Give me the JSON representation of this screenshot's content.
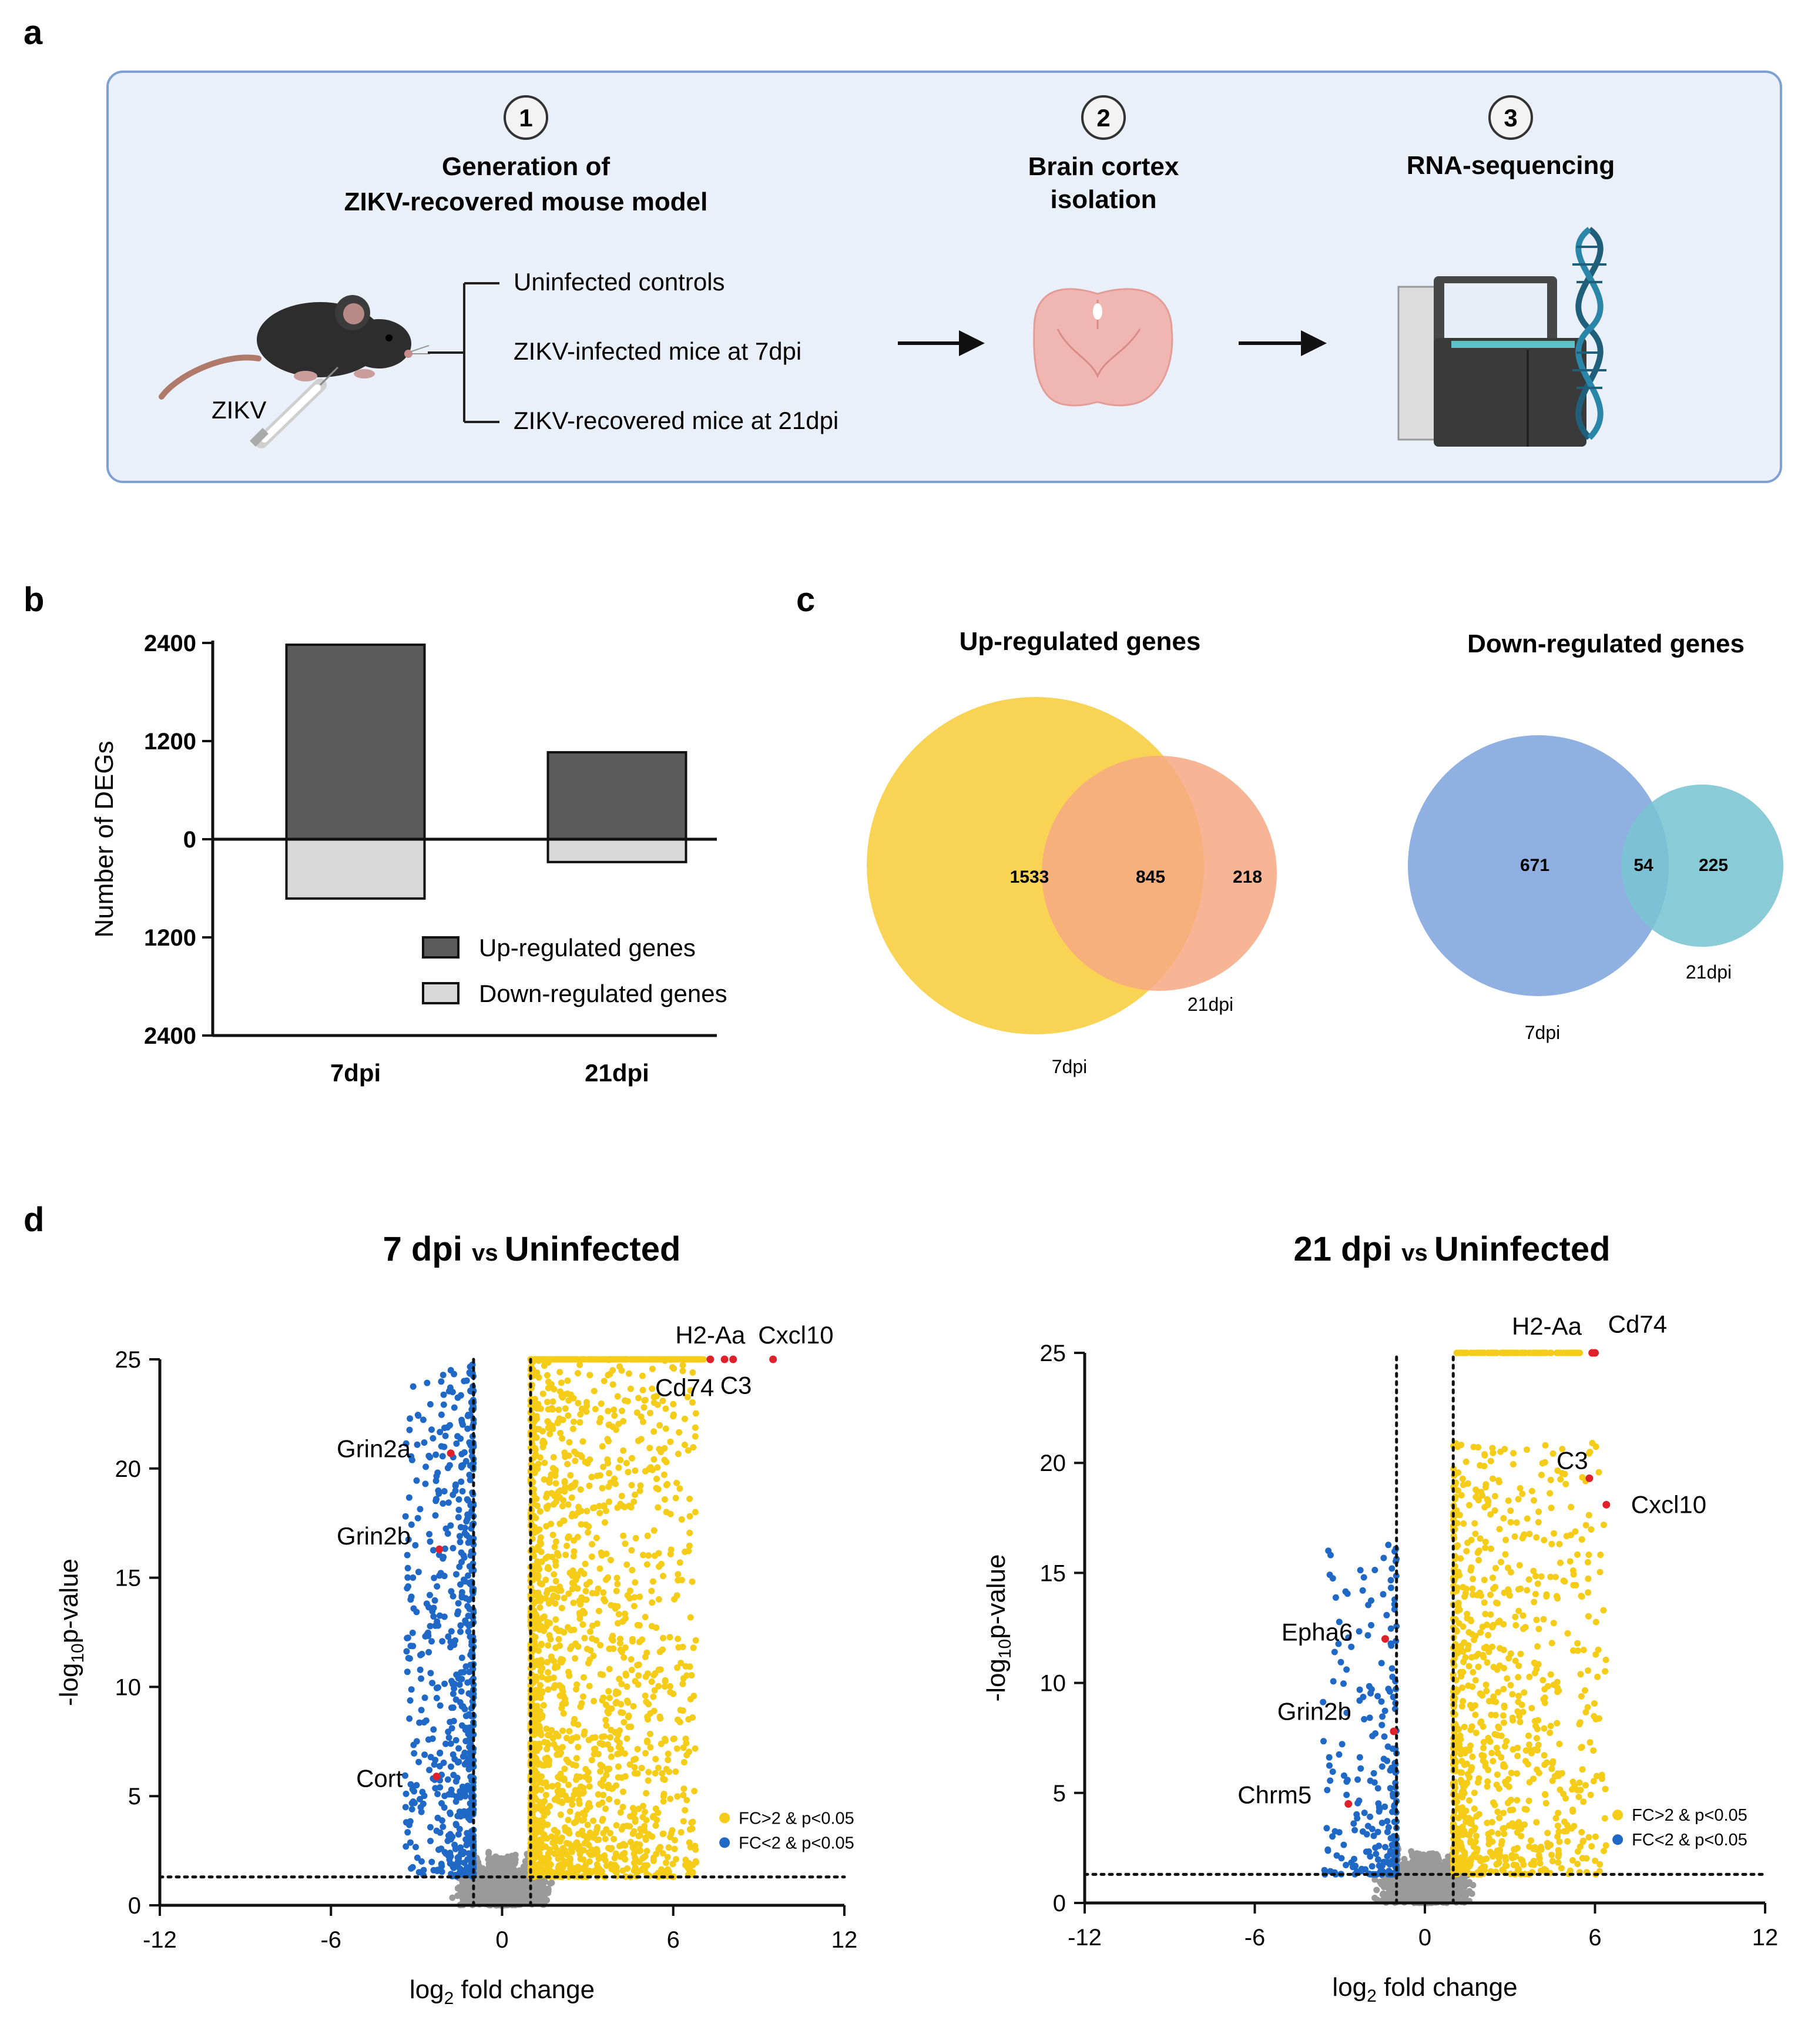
{
  "panels": {
    "a": "a",
    "b": "b",
    "c": "c",
    "d": "d"
  },
  "colors": {
    "bar_up": "#5b5b5b",
    "bar_down": "#d9d9d9",
    "venn_up_7dpi": "#f9cf45",
    "venn_up_21dpi": "#f7a882",
    "venn_up_overlap": "#f6a95a",
    "venn_down_7dpi": "#87a9e0",
    "venn_down_21dpi": "#79c4d2",
    "venn_down_overlap": "#5b9ec8",
    "volcano_up": "#f5cc17",
    "volcano_down": "#1f68c6",
    "volcano_ns": "#9a9a9a",
    "highlight": "#e0202a",
    "workflow_box_fill": "#e9f0fa",
    "workflow_box_border": "#7ea0d3"
  },
  "workflow": {
    "steps": [
      {
        "number": "1",
        "title_line1": "Generation of",
        "title_line2": "ZIKV-recovered mouse model"
      },
      {
        "number": "2",
        "title_line1": "Brain cortex",
        "title_line2": "isolation"
      },
      {
        "number": "3",
        "title_line1": "RNA-sequencing",
        "title_line2": ""
      }
    ],
    "groups": [
      "Uninfected controls",
      "ZIKV-infected mice at 7dpi",
      "ZIKV-recovered mice at 21dpi"
    ],
    "injection_label": "ZIKV",
    "icons": [
      "mouse-icon",
      "syringe-icon",
      "brain-icon",
      "sequencer-icon",
      "dna-helix-icon",
      "arrow-right-icon"
    ]
  },
  "chart_data": [
    {
      "type": "bar",
      "panel": "b",
      "categories": [
        "7dpi",
        "21dpi"
      ],
      "series": [
        {
          "name": "Up-regulated genes",
          "values": [
            2378,
            1063
          ]
        },
        {
          "name": "Down-regulated genes",
          "values": [
            -725,
            -279
          ]
        }
      ],
      "ylabel": "Number of DEGs",
      "ylim": [
        -2400,
        2400
      ],
      "yticks": [
        2400,
        1200,
        0,
        1200,
        2400
      ],
      "ytick_values": [
        2400,
        1200,
        0,
        -1200,
        -2400
      ],
      "legend": [
        "Up-regulated genes",
        "Down-regulated genes"
      ]
    },
    {
      "type": "venn",
      "panel": "c",
      "title": "Up-regulated genes",
      "sets": [
        "7dpi",
        "21dpi"
      ],
      "values": {
        "only_a": "1533",
        "both": "845",
        "only_b": "218"
      }
    },
    {
      "type": "venn",
      "panel": "c",
      "title": "Down-regulated genes",
      "sets": [
        "7dpi",
        "21dpi"
      ],
      "values": {
        "only_a": "671",
        "both": "54",
        "only_b": "225"
      }
    },
    {
      "type": "scatter",
      "panel": "d",
      "title_part1": "7 dpi",
      "title_part2": "vs",
      "title_part3": "Uninfected",
      "xlabel_pre": "log",
      "xlabel_sub": "2",
      "xlabel_post": "fold change",
      "ylabel_pre": "-log",
      "ylabel_sub": "10",
      "ylabel_post": "p-value",
      "xlim": [
        -12,
        12
      ],
      "ylim": [
        0,
        25
      ],
      "xticks": [
        "-12",
        "-6",
        "0",
        "6",
        "12"
      ],
      "yticks": [
        "0",
        "5",
        "10",
        "15",
        "20",
        "25"
      ],
      "fc_threshold": 1,
      "p_threshold": 1.3,
      "legend": [
        "FC>2 & p<0.05",
        "FC<2 & p<0.05"
      ],
      "up_count": 2378,
      "down_count": 725,
      "highlights": [
        {
          "gene": "H2-Aa",
          "x": 7.3,
          "y": 25,
          "label_x": 7.3,
          "label_y": 26.1
        },
        {
          "gene": "Cxcl10",
          "x": 9.5,
          "y": 25,
          "label_x": 10.3,
          "label_y": 26.1
        },
        {
          "gene": "Cd74",
          "x": 7.8,
          "y": 25,
          "label_x": 6.4,
          "label_y": 23.7
        },
        {
          "gene": "C3",
          "x": 8.1,
          "y": 25,
          "label_x": 8.2,
          "label_y": 23.8
        },
        {
          "gene": "Grin2a",
          "x": -1.8,
          "y": 20.7,
          "label_x": -4.5,
          "label_y": 20.9
        },
        {
          "gene": "Grin2b",
          "x": -2.2,
          "y": 16.3,
          "label_x": -4.5,
          "label_y": 16.9
        },
        {
          "gene": "Cort",
          "x": -2.3,
          "y": 5.9,
          "label_x": -4.3,
          "label_y": 5.8
        }
      ]
    },
    {
      "type": "scatter",
      "panel": "d",
      "title_part1": "21 dpi",
      "title_part2": "vs",
      "title_part3": "Uninfected",
      "xlabel_pre": "log",
      "xlabel_sub": "2",
      "xlabel_post": "fold change",
      "ylabel_pre": "-log",
      "ylabel_sub": "10",
      "ylabel_post": "p-value",
      "xlim": [
        -12,
        12
      ],
      "ylim": [
        0,
        25
      ],
      "xticks": [
        "-12",
        "-6",
        "0",
        "6",
        "12"
      ],
      "yticks": [
        "0",
        "5",
        "10",
        "15",
        "20",
        "25"
      ],
      "fc_threshold": 1,
      "p_threshold": 1.3,
      "legend": [
        "FC>2 & p<0.05",
        "FC<2 & p<0.05"
      ],
      "up_count": 1063,
      "down_count": 279,
      "highlights": [
        {
          "gene": "H2-Aa",
          "x": 5.9,
          "y": 25,
          "label_x": 4.3,
          "label_y": 26.2
        },
        {
          "gene": "Cd74",
          "x": 6.0,
          "y": 25,
          "label_x": 7.5,
          "label_y": 26.3
        },
        {
          "gene": "C3",
          "x": 5.8,
          "y": 19.3,
          "label_x": 5.2,
          "label_y": 20.1
        },
        {
          "gene": "Cxcl10",
          "x": 6.4,
          "y": 18.1,
          "label_x": 8.6,
          "label_y": 18.1
        },
        {
          "gene": "Epha6",
          "x": -1.4,
          "y": 12.0,
          "label_x": -3.8,
          "label_y": 12.3
        },
        {
          "gene": "Grin2b",
          "x": -1.1,
          "y": 7.8,
          "label_x": -3.9,
          "label_y": 8.7
        },
        {
          "gene": "Chrm5",
          "x": -2.7,
          "y": 4.5,
          "label_x": -5.3,
          "label_y": 4.9
        }
      ]
    }
  ]
}
